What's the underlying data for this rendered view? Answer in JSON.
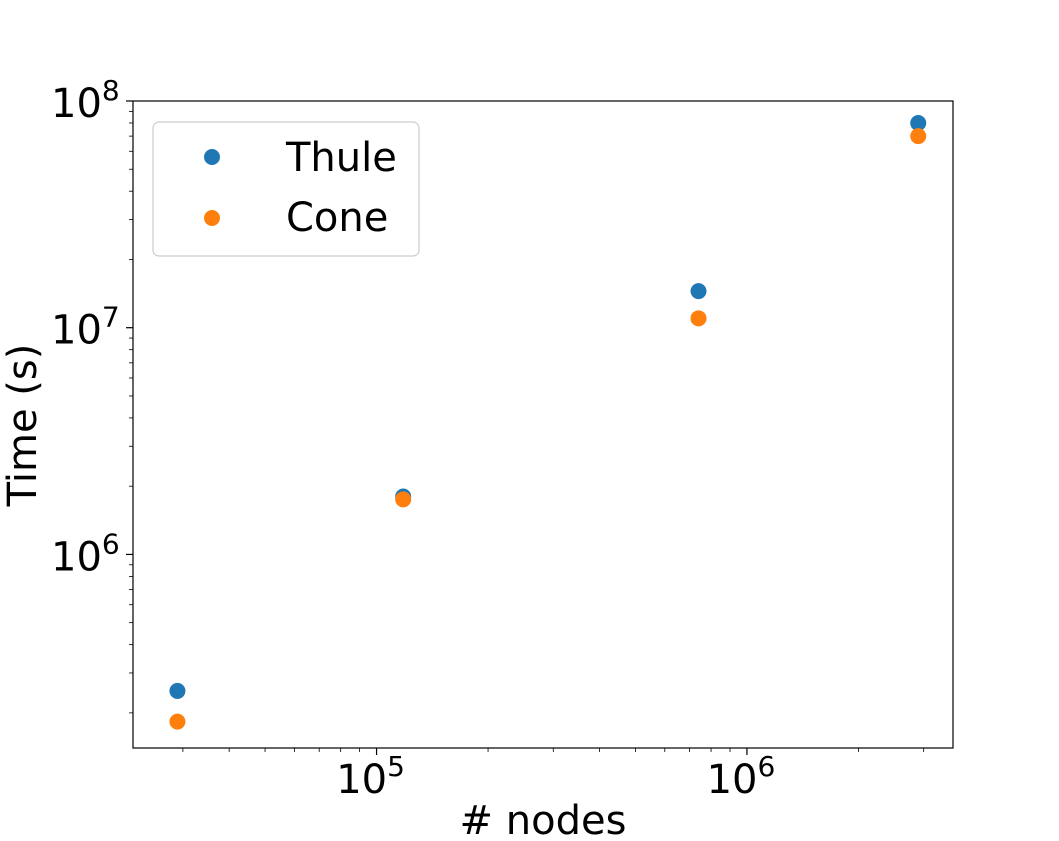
{
  "chart_data": {
    "type": "scatter",
    "xlabel": "# nodes",
    "ylabel": "Time (s)",
    "xscale": "log",
    "yscale": "log",
    "xlim": [
      22000,
      3600000
    ],
    "ylim": [
      140000,
      100000000
    ],
    "x_ticks": [
      {
        "base": "10",
        "exp": "5",
        "value": 100000
      },
      {
        "base": "10",
        "exp": "6",
        "value": 1000000
      }
    ],
    "y_ticks": [
      {
        "base": "10",
        "exp": "6",
        "value": 1000000
      },
      {
        "base": "10",
        "exp": "7",
        "value": 10000000
      },
      {
        "base": "10",
        "exp": "8",
        "value": 100000000
      }
    ],
    "grid": false,
    "legend_position": "upper-left",
    "series": [
      {
        "name": "Thule",
        "color": "#1f77b4",
        "points": [
          {
            "x": 29000,
            "y": 250000
          },
          {
            "x": 118000,
            "y": 1800000
          },
          {
            "x": 740000,
            "y": 14500000
          },
          {
            "x": 2900000,
            "y": 80000000
          }
        ]
      },
      {
        "name": "Cone",
        "color": "#ff7f0e",
        "points": [
          {
            "x": 29000,
            "y": 183000
          },
          {
            "x": 118000,
            "y": 1750000
          },
          {
            "x": 740000,
            "y": 11000000
          },
          {
            "x": 2900000,
            "y": 70000000
          }
        ]
      }
    ]
  }
}
